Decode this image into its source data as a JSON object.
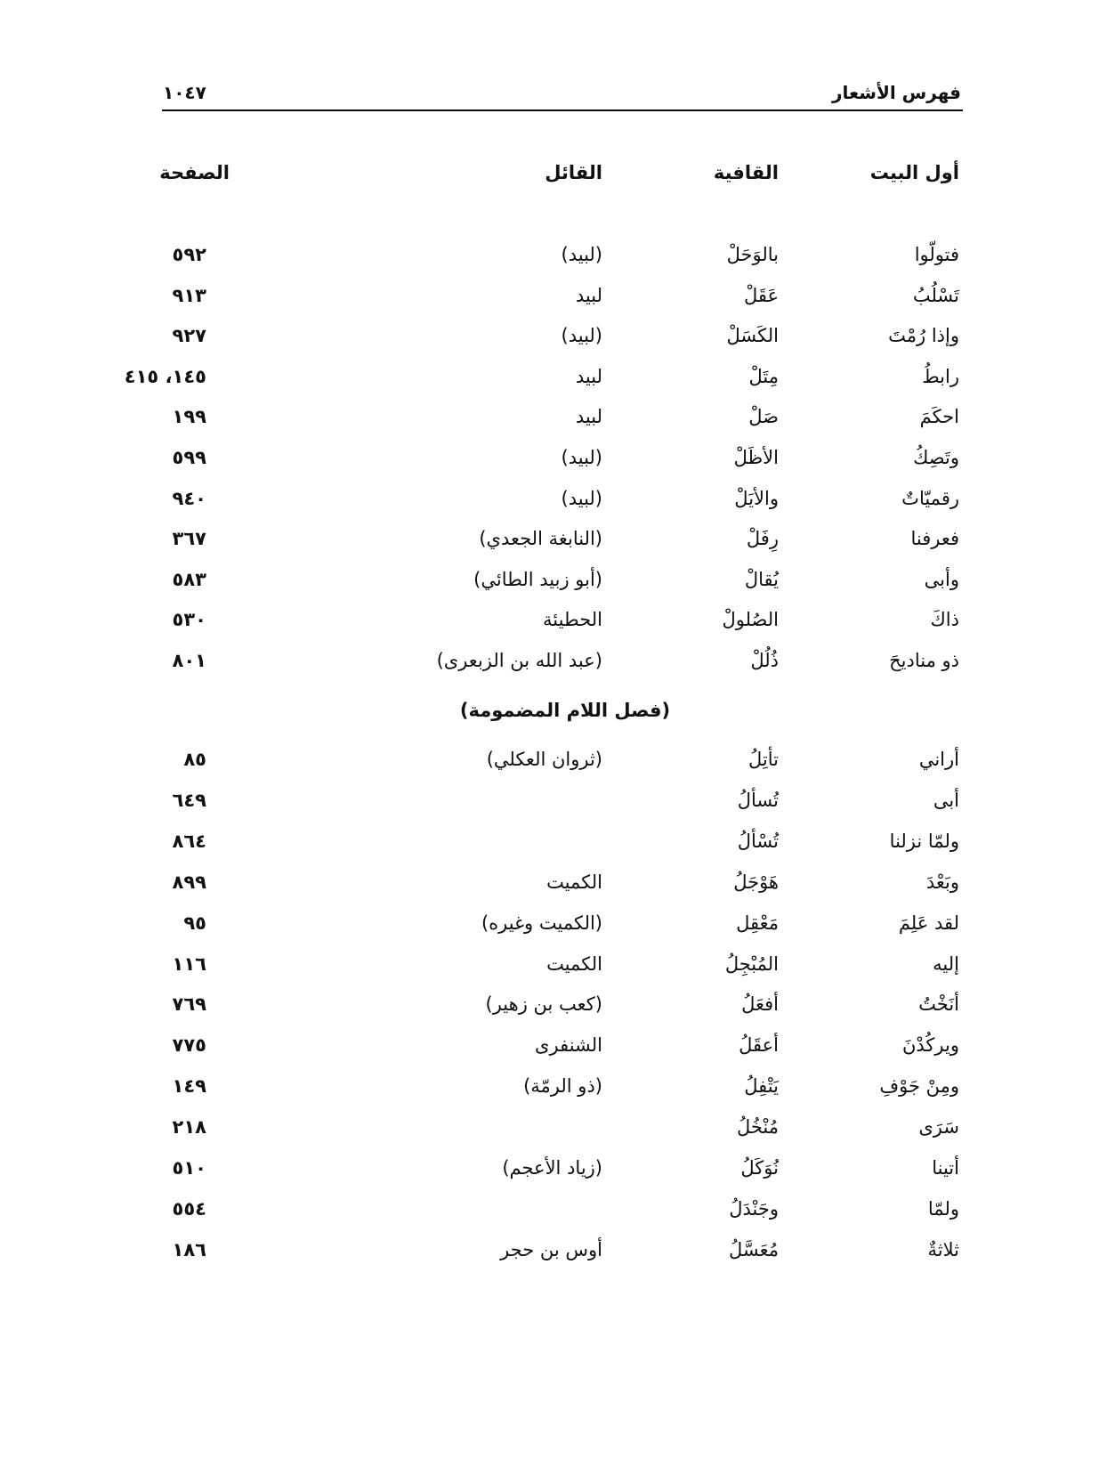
{
  "header": {
    "running_title": "فهرس الأشعار",
    "page_number": "١٠٤٧"
  },
  "columns": [
    "أول البيت",
    "القافية",
    "القائل",
    "الصفحة"
  ],
  "rows_a": [
    [
      "فتولّوا",
      "بالوَحَلْ",
      "(لبيد)",
      "٥٩٢"
    ],
    [
      "تَسْلُبُ",
      "عَقَلْ",
      "لبيد",
      "٩١٣"
    ],
    [
      "وإذا رُمْتَ",
      "الكَسَلْ",
      "(لبيد)",
      "٩٢٧"
    ],
    [
      "رابطُ",
      "مِتَلْ",
      "لبيد",
      "١٤٥، ٤١٥"
    ],
    [
      "احكَمَ",
      "صَلْ",
      "لبيد",
      "١٩٩"
    ],
    [
      "وتَصِكُ",
      "الأظَلْ",
      "(لبيد)",
      "٥٩٩"
    ],
    [
      "رقميّاتٌ",
      "والأيَلْ",
      "(لبيد)",
      "٩٤٠"
    ],
    [
      "فعرفنا",
      "رِفَلْ",
      "(النابغة الجعدي)",
      "٣٦٧"
    ],
    [
      "وأبى",
      "يُقالْ",
      "(أبو زبيد الطائي)",
      "٥٨٣"
    ],
    [
      "ذاكَ",
      "الصُلولْ",
      "الحطيئة",
      "٥٣٠"
    ],
    [
      "ذو مناديحَ",
      "ذُلُلْ",
      "(عبد الله بن الزبعرى)",
      "٨٠١"
    ]
  ],
  "section_title": "(فصل اللام المضمومة)",
  "rows_b": [
    [
      "أراني",
      "تأتِلُ",
      "(ثروان العكلي)",
      "٨٥"
    ],
    [
      "أبى",
      "تُسألُ",
      "",
      "٦٤٩"
    ],
    [
      "ولمّا نزلنا",
      "تُسْألُ",
      "",
      "٨٦٤"
    ],
    [
      "وبَعْدَ",
      "هَوْجَلُ",
      "الكميت",
      "٨٩٩"
    ],
    [
      "لقد عَلِمَ",
      "مَعْقِل",
      "(الكميت وغيره)",
      "٩٥"
    ],
    [
      "إليه",
      "المُبْجِلُ",
      "الكميت",
      "١١٦"
    ],
    [
      "أنَخْتُ",
      "أفعَلُ",
      "(كعب بن زهير)",
      "٧٦٩"
    ],
    [
      "ويركُدْنَ",
      "أعقَلُ",
      "الشنفرى",
      "٧٧٥"
    ],
    [
      "ومِنْ جَوْفِ",
      "يَتْفِلُ",
      "(ذو الرمّة)",
      "١٤٩"
    ],
    [
      "سَرَى",
      "مُنْخُلُ",
      "",
      "٢١٨"
    ],
    [
      "أتينا",
      "نُوَكَلُ",
      "(زياد الأعجم)",
      "٥١٠"
    ],
    [
      "ولمّا",
      "وجَنْدَلُ",
      "",
      "٥٥٤"
    ],
    [
      "ثلاثةٌ",
      "مُعَسَّلُ",
      "أوس بن حجر",
      "١٨٦"
    ]
  ]
}
